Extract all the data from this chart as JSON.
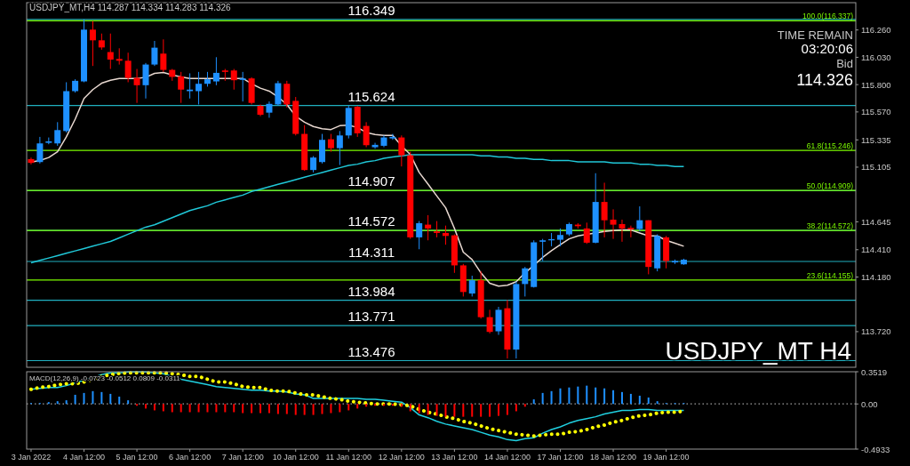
{
  "chart_data": [
    {
      "type": "candlestick",
      "tick_labels": "y",
      "categories": [
        null,
        null,
        null,
        null,
        null,
        null,
        null,
        null,
        null,
        null,
        null,
        null,
        null,
        null,
        null,
        null,
        null,
        null,
        null,
        null,
        null,
        null,
        null,
        null,
        null,
        null,
        null,
        null,
        null,
        null,
        null,
        null,
        null,
        null,
        null,
        null,
        null,
        null,
        null,
        null,
        null,
        null,
        null,
        null,
        null,
        null,
        null,
        null,
        null,
        null,
        null,
        null,
        null,
        null,
        null,
        null,
        null,
        null,
        null,
        null,
        null,
        null,
        null,
        null,
        null,
        null,
        null,
        null,
        null,
        null,
        null,
        null,
        null,
        null,
        null,
        null,
        null,
        null,
        null,
        null,
        null,
        null,
        null,
        null,
        null,
        null,
        null,
        null,
        null,
        null,
        null,
        null,
        null,
        null
      ],
      "ohlc": [
        [
          115.173,
          115.186,
          115.128,
          115.141
        ],
        [
          115.148,
          115.36,
          115.136,
          115.305
        ],
        [
          115.31,
          115.355,
          115.298,
          115.322
        ],
        [
          115.305,
          115.484,
          115.285,
          115.417
        ],
        [
          115.409,
          115.82,
          115.397,
          115.745
        ],
        [
          115.745,
          115.845,
          115.733,
          115.832
        ],
        [
          115.827,
          116.35,
          115.82,
          116.263
        ],
        [
          116.263,
          116.335,
          115.957,
          116.173
        ],
        [
          116.173,
          116.23,
          116.094,
          116.113
        ],
        [
          116.074,
          116.23,
          115.932,
          116.011
        ],
        [
          116.016,
          116.106,
          115.969,
          116.001
        ],
        [
          116.001,
          116.069,
          115.82,
          115.857
        ],
        [
          115.857,
          115.932,
          115.646,
          115.795
        ],
        [
          115.795,
          115.982,
          115.683,
          115.969
        ],
        [
          115.969,
          116.168,
          115.957,
          116.111
        ],
        [
          116.061,
          116.181,
          115.907,
          115.924
        ],
        [
          115.924,
          115.932,
          115.832,
          115.865
        ],
        [
          115.87,
          115.907,
          115.646,
          115.758
        ],
        [
          115.745,
          115.895,
          115.683,
          115.758
        ],
        [
          115.745,
          115.907,
          115.633,
          115.807
        ],
        [
          115.807,
          115.907,
          115.783,
          115.845
        ],
        [
          115.827,
          116.031,
          115.795,
          115.899
        ],
        [
          115.919,
          115.932,
          115.832,
          115.907
        ],
        [
          115.919,
          115.932,
          115.758,
          115.837
        ],
        [
          115.84,
          115.907,
          115.658,
          115.852
        ],
        [
          115.852,
          115.862,
          115.633,
          115.646
        ],
        [
          115.621,
          115.633,
          115.534,
          115.546
        ],
        [
          115.564,
          115.658,
          115.521,
          115.638
        ],
        [
          115.633,
          115.832,
          115.621,
          115.812
        ],
        [
          115.807,
          115.832,
          115.608,
          115.633
        ],
        [
          115.663,
          115.696,
          115.372,
          115.385
        ],
        [
          115.385,
          115.459,
          115.074,
          115.081
        ],
        [
          115.081,
          115.198,
          115.061,
          115.186
        ],
        [
          115.148,
          115.385,
          115.136,
          115.335
        ],
        [
          115.34,
          115.385,
          115.235,
          115.265
        ],
        [
          115.265,
          115.409,
          115.123,
          115.372
        ],
        [
          115.372,
          115.621,
          115.347,
          115.604
        ],
        [
          115.613,
          115.621,
          115.36,
          115.39
        ],
        [
          115.452,
          115.484,
          115.273,
          115.29
        ],
        [
          115.273,
          115.31,
          115.26,
          115.293
        ],
        [
          115.285,
          115.372,
          115.273,
          115.355
        ],
        [
          115.347,
          115.385,
          115.335,
          115.36
        ],
        [
          115.355,
          115.372,
          115.111,
          115.205
        ],
        [
          115.205,
          115.235,
          114.501,
          114.514
        ],
        [
          114.514,
          114.651,
          114.414,
          114.633
        ],
        [
          114.621,
          114.701,
          114.489,
          114.589
        ],
        [
          114.564,
          114.651,
          114.514,
          114.551
        ],
        [
          114.551,
          114.613,
          114.452,
          114.526
        ],
        [
          114.531,
          114.539,
          114.215,
          114.278
        ],
        [
          114.278,
          114.29,
          114.016,
          114.054
        ],
        [
          114.041,
          114.191,
          114.016,
          114.153
        ],
        [
          114.153,
          114.228,
          113.83,
          113.842
        ],
        [
          113.842,
          113.904,
          113.705,
          113.718
        ],
        [
          113.723,
          113.929,
          113.693,
          113.904
        ],
        [
          113.917,
          113.987,
          113.494,
          113.569
        ],
        [
          113.569,
          114.141,
          113.494,
          114.121
        ],
        [
          114.121,
          114.265,
          114.016,
          114.253
        ],
        [
          114.096,
          114.489,
          114.091,
          114.472
        ],
        [
          114.477,
          114.501,
          114.315,
          114.489
        ],
        [
          114.489,
          114.551,
          114.439,
          114.499
        ],
        [
          114.494,
          114.589,
          114.439,
          114.534
        ],
        [
          114.539,
          114.638,
          114.526,
          114.626
        ],
        [
          114.621,
          114.633,
          114.589,
          114.608
        ],
        [
          114.589,
          114.638,
          114.459,
          114.469
        ],
        [
          114.469,
          115.054,
          114.464,
          114.812
        ],
        [
          114.812,
          114.974,
          114.514,
          114.658
        ],
        [
          114.663,
          114.75,
          114.501,
          114.621
        ],
        [
          114.626,
          114.663,
          114.477,
          114.589
        ],
        [
          114.594,
          114.613,
          114.514,
          114.581
        ],
        [
          114.584,
          114.775,
          114.564,
          114.658
        ],
        [
          114.658,
          114.658,
          114.203,
          114.265
        ],
        [
          114.253,
          114.539,
          114.228,
          114.526
        ],
        [
          114.514,
          114.526,
          114.253,
          114.315
        ],
        [
          114.303,
          114.327,
          114.29,
          114.315
        ],
        [
          114.287,
          114.334,
          114.283,
          114.326
        ],
        null,
        null,
        null,
        null,
        null,
        null,
        null,
        null,
        null,
        null,
        null,
        null,
        null,
        null,
        null,
        null,
        null,
        null,
        null
      ],
      "colors": [
        "#ff0000",
        "#1e90ff",
        "#1e90ff",
        "#1e90ff",
        "#1e90ff",
        "#1e90ff",
        "#1e90ff",
        "#ff0000",
        "#ff0000",
        "#ff0000",
        "#ff0000",
        "#ff0000",
        "#ff0000",
        "#1e90ff",
        "#1e90ff",
        "#ff0000",
        "#ff0000",
        "#ff0000",
        "#1e90ff",
        "#1e90ff",
        "#1e90ff",
        "#1e90ff",
        "#ff0000",
        "#ff0000",
        "#1e90ff",
        "#ff0000",
        "#ff0000",
        "#1e90ff",
        "#1e90ff",
        "#ff0000",
        "#ff0000",
        "#ff0000",
        "#1e90ff",
        "#1e90ff",
        "#ff0000",
        "#1e90ff",
        "#1e90ff",
        "#ff0000",
        "#ff0000",
        "#1e90ff",
        "#1e90ff",
        "#1e90ff",
        "#ff0000",
        "#ff0000",
        "#1e90ff",
        "#ff0000",
        "#ff0000",
        "#ff0000",
        "#ff0000",
        "#ff0000",
        "#1e90ff",
        "#ff0000",
        "#ff0000",
        "#1e90ff",
        "#ff0000",
        "#1e90ff",
        "#1e90ff",
        "#1e90ff",
        "#1e90ff",
        "#1e90ff",
        "#1e90ff",
        "#1e90ff",
        "#ff0000",
        "#ff0000",
        "#1e90ff",
        "#ff0000",
        "#ff0000",
        "#ff0000",
        "#ff0000",
        "#1e90ff",
        "#ff0000",
        "#1e90ff",
        "#ff0000",
        "#1e90ff",
        "#1e90ff",
        null,
        null,
        null,
        null,
        null,
        null,
        null,
        null,
        null,
        null,
        null,
        null,
        null,
        null,
        null,
        null,
        null,
        null,
        null
      ],
      "series": [
        {
          "type": "line",
          "color": "#20c8d8",
          "values": [
            114.3,
            114.32,
            114.34,
            114.36,
            114.38,
            114.4,
            114.42,
            114.44,
            114.46,
            114.48,
            114.51,
            114.54,
            114.57,
            114.6,
            114.62,
            114.65,
            114.68,
            114.71,
            114.74,
            114.76,
            114.78,
            114.81,
            114.83,
            114.85,
            114.87,
            114.9,
            114.92,
            114.94,
            114.96,
            114.98,
            115.0,
            115.02,
            115.04,
            115.06,
            115.08,
            115.1,
            115.12,
            115.13,
            115.15,
            115.16,
            115.18,
            115.19,
            115.2,
            115.21,
            115.21,
            115.21,
            115.21,
            115.21,
            115.21,
            115.21,
            115.21,
            115.2,
            115.2,
            115.19,
            115.19,
            115.18,
            115.18,
            115.17,
            115.17,
            115.16,
            115.16,
            115.16,
            115.15,
            115.15,
            115.15,
            115.15,
            115.14,
            115.14,
            115.14,
            115.13,
            115.13,
            115.12,
            115.12,
            115.11,
            115.11,
            null,
            null,
            null,
            null,
            null,
            null,
            null,
            null,
            null,
            null,
            null,
            null,
            null,
            null,
            null,
            null,
            null,
            null,
            null
          ]
        },
        {
          "type": "line",
          "color": "#e8d8d0",
          "values": [
            115.148,
            115.161,
            115.186,
            115.235,
            115.36,
            115.509,
            115.683,
            115.758,
            115.812,
            115.837,
            115.852,
            115.852,
            115.852,
            115.862,
            115.895,
            115.902,
            115.882,
            115.865,
            115.852,
            115.852,
            115.852,
            115.852,
            115.852,
            115.852,
            115.852,
            115.807,
            115.77,
            115.745,
            115.696,
            115.633,
            115.534,
            115.484,
            115.447,
            115.429,
            115.422,
            115.454,
            115.459,
            115.439,
            115.397,
            115.38,
            115.372,
            115.372,
            115.285,
            115.211,
            115.061,
            114.962,
            114.862,
            114.763,
            114.589,
            114.39,
            114.327,
            114.215,
            114.128,
            114.103,
            114.111,
            114.141,
            114.215,
            114.278,
            114.345,
            114.402,
            114.452,
            114.501,
            114.526,
            114.539,
            114.551,
            114.564,
            114.571,
            114.576,
            114.576,
            114.551,
            114.526,
            114.526,
            114.489,
            114.464,
            114.439,
            null,
            null,
            null,
            null,
            null,
            null,
            null,
            null,
            null,
            null,
            null,
            null,
            null,
            null,
            null,
            null,
            null,
            null,
            null
          ]
        }
      ],
      "ylim": [
        113.42,
        116.49
      ],
      "yticks": [
        {
          "value": 116.26,
          "label": "116.260"
        },
        {
          "value": 116.03,
          "label": "116.030"
        },
        {
          "value": 115.8,
          "label": "115.800"
        },
        {
          "value": 115.57,
          "label": "115.570"
        },
        115.335,
        115.105,
        114.645,
        {
          "value": 114.41,
          "label": "114.410"
        },
        {
          "value": 114.18,
          "label": "114.180"
        },
        {
          "value": 113.72,
          "label": "113.720"
        }
      ],
      "ref_lines": [
        {
          "axis": "y",
          "value": 116.349,
          "label": "116.349",
          "color": "#20b0c0"
        },
        {
          "axis": "y",
          "value": 115.624,
          "label": "115.624",
          "color": "#20b0c0"
        },
        {
          "axis": "y",
          "value": 114.907,
          "label": "114.907",
          "color": "#20b0c0"
        },
        {
          "axis": "y",
          "value": 114.572,
          "label": "114.572",
          "color": "#20b0c0"
        },
        {
          "axis": "y",
          "value": 114.311,
          "label": "114.311",
          "color": "#20b0c0"
        },
        {
          "axis": "y",
          "value": 113.984,
          "label": "113.984",
          "color": "#20b0c0"
        },
        {
          "axis": "y",
          "value": 113.771,
          "label": "113.771",
          "color": "#20b0c0"
        },
        {
          "axis": "y",
          "value": 113.476,
          "label": "113.476",
          "color": "#20b0c0"
        },
        {
          "axis": "y",
          "value": 116.337,
          "label": "100.0(116.337)",
          "color": "#7cfc00"
        },
        {
          "axis": "y",
          "value": 115.246,
          "label": "61.8(115.246)",
          "color": "#7cfc00"
        },
        {
          "axis": "y",
          "value": 114.909,
          "label": "50.0(114.909)",
          "color": "#7cfc00"
        },
        {
          "axis": "y",
          "value": 114.572,
          "label": "38.2(114.572)",
          "color": "#7cfc00"
        },
        {
          "axis": "y",
          "value": 114.155,
          "label": "23.6(114.155)",
          "color": "#7cfc00"
        }
      ],
      "annotations": [
        "USDJPY_MT,H4  114.287 114.334 114.283 114.326",
        "TIME REMAIN",
        "03:20:06",
        "Bid",
        "114.326",
        "USDJPY_MT H4"
      ]
    },
    {
      "type": "bar",
      "categories": [
        "3 Jan 2022",
        null,
        null,
        null,
        null,
        null,
        "4 Jan 12:00",
        null,
        null,
        null,
        null,
        null,
        "5 Jan 12:00",
        null,
        null,
        null,
        null,
        null,
        "6 Jan 12:00",
        null,
        null,
        null,
        null,
        null,
        "7 Jan 12:00",
        null,
        null,
        null,
        null,
        null,
        "10 Jan 12:00",
        null,
        null,
        null,
        null,
        null,
        "11 Jan 12:00",
        null,
        null,
        null,
        null,
        null,
        "12 Jan 12:00",
        null,
        null,
        null,
        null,
        null,
        "13 Jan 12:00",
        null,
        null,
        null,
        null,
        null,
        "14 Jan 12:00",
        null,
        null,
        null,
        null,
        null,
        "17 Jan 12:00",
        null,
        null,
        null,
        null,
        null,
        "18 Jan 12:00",
        null,
        null,
        null,
        null,
        null,
        "19 Jan 12:00",
        null,
        null,
        null,
        null,
        null,
        null,
        null,
        null,
        null,
        null,
        null,
        null,
        null,
        null,
        null,
        null,
        null,
        null,
        null,
        null,
        null
      ],
      "series": [
        {
          "type": "bar",
          "values": [
            0.01,
            0.01,
            0.02,
            0.03,
            0.04,
            0.1,
            0.12,
            0.14,
            0.13,
            0.11,
            0.08,
            0.04,
            -0.02,
            -0.05,
            -0.07,
            -0.08,
            -0.09,
            -0.09,
            -0.09,
            -0.09,
            -0.09,
            -0.09,
            -0.09,
            -0.09,
            -0.1,
            -0.1,
            -0.1,
            -0.1,
            -0.11,
            -0.11,
            -0.12,
            -0.12,
            -0.12,
            -0.11,
            -0.1,
            -0.09,
            -0.07,
            -0.05,
            -0.03,
            -0.02,
            -0.02,
            -0.02,
            -0.03,
            -0.08,
            -0.1,
            -0.12,
            -0.13,
            -0.14,
            -0.14,
            -0.14,
            -0.14,
            -0.14,
            -0.14,
            -0.13,
            -0.12,
            -0.08,
            -0.03,
            0.05,
            0.12,
            0.14,
            0.17,
            0.18,
            0.19,
            0.2,
            0.18,
            0.17,
            0.15,
            0.13,
            0.11,
            0.09,
            0.07,
            0.03,
            0.01,
            0.01,
            0.01,
            null,
            null,
            null,
            null,
            null,
            null,
            null,
            null,
            null,
            null,
            null,
            null,
            null,
            null,
            null,
            null,
            null,
            null,
            null
          ],
          "colors": [
            "#1e90ff",
            "#1e90ff",
            "#1e90ff",
            "#1e90ff",
            "#1e90ff",
            "#1e90ff",
            "#1e90ff",
            "#1e90ff",
            "#1e90ff",
            "#1e90ff",
            "#1e90ff",
            "#1e90ff",
            "#ff0000",
            "#ff0000",
            "#ff0000",
            "#ff0000",
            "#ff0000",
            "#ff0000",
            "#ff0000",
            "#ff0000",
            "#ff0000",
            "#ff0000",
            "#ff0000",
            "#ff0000",
            "#ff0000",
            "#ff0000",
            "#ff0000",
            "#ff0000",
            "#ff0000",
            "#ff0000",
            "#ff0000",
            "#ff0000",
            "#ff0000",
            "#ff0000",
            "#ff0000",
            "#ff0000",
            "#ff0000",
            "#ff0000",
            "#ff0000",
            "#ff0000",
            "#ff0000",
            "#ff0000",
            "#ff0000",
            "#ff0000",
            "#ff0000",
            "#ff0000",
            "#ff0000",
            "#ff0000",
            "#ff0000",
            "#ff0000",
            "#ff0000",
            "#ff0000",
            "#ff0000",
            "#ff0000",
            "#ff0000",
            "#ff0000",
            "#ff0000",
            "#1e90ff",
            "#1e90ff",
            "#1e90ff",
            "#1e90ff",
            "#1e90ff",
            "#1e90ff",
            "#1e90ff",
            "#1e90ff",
            "#1e90ff",
            "#1e90ff",
            "#1e90ff",
            "#1e90ff",
            "#1e90ff",
            "#1e90ff",
            "#1e90ff",
            "#1e90ff",
            "#1e90ff",
            "#1e90ff",
            null,
            null,
            null,
            null,
            null,
            null,
            null,
            null,
            null,
            null,
            null,
            null,
            null,
            null,
            null,
            null,
            null,
            null,
            null
          ]
        },
        {
          "type": "line",
          "color": "#20d0e0",
          "values": [
            0.16,
            0.17,
            0.18,
            0.18,
            0.2,
            0.23,
            0.26,
            0.29,
            0.32,
            0.34,
            0.34,
            0.35,
            0.35,
            0.35,
            0.34,
            0.33,
            0.3,
            0.27,
            0.25,
            0.23,
            0.21,
            0.19,
            0.18,
            0.17,
            0.16,
            0.15,
            0.15,
            0.14,
            0.14,
            0.13,
            0.11,
            0.1,
            0.06,
            0.06,
            0.06,
            0.06,
            0.06,
            0.06,
            0.05,
            0.05,
            0.04,
            0.03,
            0.02,
            -0.04,
            -0.12,
            -0.15,
            -0.19,
            -0.22,
            -0.24,
            -0.26,
            -0.28,
            -0.31,
            -0.34,
            -0.36,
            -0.39,
            -0.4,
            -0.38,
            -0.37,
            -0.32,
            -0.28,
            -0.25,
            -0.21,
            -0.18,
            -0.16,
            -0.14,
            -0.11,
            -0.09,
            -0.07,
            -0.07,
            -0.06,
            -0.06,
            -0.07,
            -0.07,
            -0.07,
            -0.07,
            null,
            null,
            null,
            null,
            null,
            null,
            null,
            null,
            null,
            null,
            null,
            null,
            null,
            null,
            null,
            null,
            null,
            null,
            null
          ]
        },
        {
          "type": "line",
          "color": "#ffff00",
          "line_style": "dotted",
          "values": [
            0.16,
            0.18,
            0.19,
            0.21,
            0.22,
            0.22,
            0.24,
            0.27,
            0.3,
            0.32,
            0.33,
            0.34,
            0.34,
            0.34,
            0.34,
            0.34,
            0.33,
            0.32,
            0.3,
            0.3,
            0.27,
            0.24,
            0.24,
            0.22,
            0.19,
            0.18,
            0.18,
            0.15,
            0.14,
            0.14,
            0.12,
            0.1,
            0.1,
            0.08,
            0.06,
            0.05,
            0.03,
            0.02,
            0.01,
            0,
            0,
            0,
            -0.01,
            -0.02,
            -0.06,
            -0.09,
            -0.11,
            -0.14,
            -0.16,
            -0.19,
            -0.21,
            -0.24,
            -0.27,
            -0.29,
            -0.31,
            -0.33,
            -0.34,
            -0.35,
            -0.34,
            -0.33,
            -0.33,
            -0.31,
            -0.3,
            -0.28,
            -0.25,
            -0.23,
            -0.2,
            -0.18,
            -0.15,
            -0.13,
            -0.12,
            -0.1,
            -0.09,
            -0.09,
            -0.08,
            null,
            null,
            null,
            null,
            null,
            null,
            null,
            null,
            null,
            null,
            null,
            null,
            null,
            null,
            null,
            null,
            null,
            null,
            null
          ]
        }
      ],
      "ylim": [
        -0.4933,
        0.3519
      ],
      "yticks": [
        0.3519,
        {
          "value": 0,
          "label": "0.00"
        },
        -0.4933
      ],
      "ref_lines": [
        {
          "axis": "y",
          "value": 0,
          "color": "#a0a0a0",
          "line_style": "dotted"
        }
      ],
      "annotations": [
        "MACD(12,26,9) -0.0723 -0.0512 0.0809 -0.0311"
      ]
    }
  ]
}
